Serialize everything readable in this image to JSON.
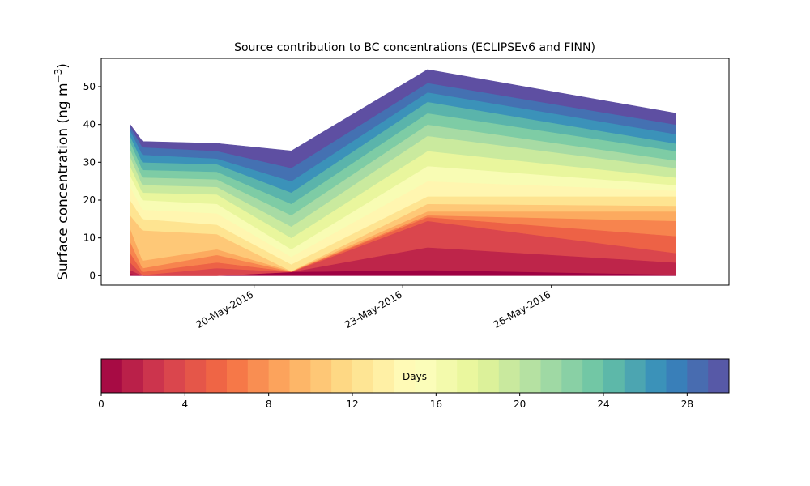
{
  "chart_data": {
    "type": "area",
    "title": "Source contribution to BC concentrations (ECLIPSEv6 and FINN)",
    "ylabel": "Surface concentration (ng m",
    "ylabel_sup": "−3",
    "ylabel_close": ")",
    "ylim": [
      -2.5,
      57.5
    ],
    "yticks": [
      0,
      10,
      20,
      30,
      40,
      50
    ],
    "xlim": [
      "2016-05-16T22:00",
      "2016-05-29T14:00"
    ],
    "xticks": [
      {
        "date": "2016-05-20",
        "label": "20-May-2016"
      },
      {
        "date": "2016-05-23",
        "label": "23-May-2016"
      },
      {
        "date": "2016-05-26",
        "label": "26-May-2016"
      }
    ],
    "x": [
      "2016-05-17T12:00",
      "2016-05-17T18:00",
      "2016-05-19T06:00",
      "2016-05-20T18:00",
      "2016-05-23T12:00",
      "2016-05-28T12:00"
    ],
    "cumulative_layers": [
      [
        0.5,
        0.0,
        0.0,
        1.0,
        1.5,
        0.3
      ],
      [
        1.5,
        0.0,
        0.0,
        1.0,
        7.5,
        3.5
      ],
      [
        3.5,
        0.2,
        2.0,
        1.0,
        14.5,
        6.0
      ],
      [
        6.0,
        1.0,
        3.5,
        1.1,
        15.5,
        10.5
      ],
      [
        9.0,
        2.0,
        5.5,
        1.1,
        16.0,
        14.5
      ],
      [
        12.5,
        4.0,
        7.0,
        1.2,
        17.0,
        17.0
      ],
      [
        16.0,
        12.0,
        11.0,
        1.2,
        19.0,
        18.5
      ],
      [
        20.0,
        15.0,
        13.5,
        3.0,
        21.0,
        21.0
      ],
      [
        23.5,
        17.5,
        16.5,
        5.0,
        25.0,
        22.5
      ],
      [
        26.5,
        20.0,
        19.0,
        7.0,
        29.0,
        24.0
      ],
      [
        29.0,
        22.0,
        21.5,
        10.0,
        33.0,
        26.0
      ],
      [
        31.5,
        24.0,
        23.5,
        13.0,
        37.0,
        28.5
      ],
      [
        33.5,
        26.0,
        25.5,
        16.0,
        40.0,
        30.5
      ],
      [
        35.5,
        28.0,
        27.5,
        19.0,
        43.0,
        33.0
      ],
      [
        37.0,
        30.0,
        29.5,
        22.0,
        46.0,
        35.0
      ],
      [
        38.5,
        32.0,
        31.0,
        25.0,
        48.5,
        37.5
      ],
      [
        39.5,
        34.0,
        33.0,
        28.5,
        51.0,
        40.0
      ],
      [
        40.0,
        35.5,
        35.0,
        33.0,
        54.5,
        43.0
      ]
    ],
    "colormap": [
      "#9e0142",
      "#d53e4f",
      "#f46d43",
      "#fdae61",
      "#fee08b",
      "#ffffbf",
      "#e6f598",
      "#abdda4",
      "#66c2a5",
      "#3288bd",
      "#5e4fa2"
    ],
    "colorbar": {
      "label": "Days",
      "min": 0,
      "max": 30,
      "bins": 30,
      "ticks": [
        0,
        4,
        8,
        12,
        16,
        20,
        24,
        28
      ]
    }
  }
}
